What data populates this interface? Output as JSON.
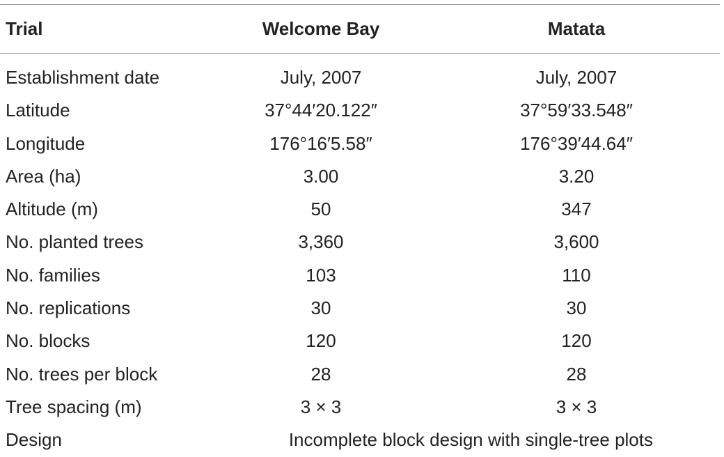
{
  "table": {
    "headers": [
      "Trial",
      "Welcome Bay",
      "Matata"
    ],
    "rows": [
      {
        "label": "Establishment date",
        "welcome_bay": "July, 2007",
        "matata": "July, 2007"
      },
      {
        "label": "Latitude",
        "welcome_bay": "37°44′20.122″",
        "matata": "37°59′33.548″"
      },
      {
        "label": "Longitude",
        "welcome_bay": "176°16′5.58″",
        "matata": "176°39′44.64″"
      },
      {
        "label": "Area (ha)",
        "welcome_bay": "3.00",
        "matata": "3.20"
      },
      {
        "label": "Altitude (m)",
        "welcome_bay": "50",
        "matata": "347"
      },
      {
        "label": "No. planted trees",
        "welcome_bay": "3,360",
        "matata": "3,600"
      },
      {
        "label": "No. families",
        "welcome_bay": "103",
        "matata": "110"
      },
      {
        "label": "No. replications",
        "welcome_bay": "30",
        "matata": "30"
      },
      {
        "label": "No. blocks",
        "welcome_bay": "120",
        "matata": "120"
      },
      {
        "label": "No. trees per block",
        "welcome_bay": "28",
        "matata": "28"
      },
      {
        "label": "Tree spacing (m)",
        "welcome_bay": "3 × 3",
        "matata": "3 × 3"
      }
    ],
    "design": {
      "label": "Design",
      "value": "Incomplete block design with single-tree plots"
    }
  }
}
